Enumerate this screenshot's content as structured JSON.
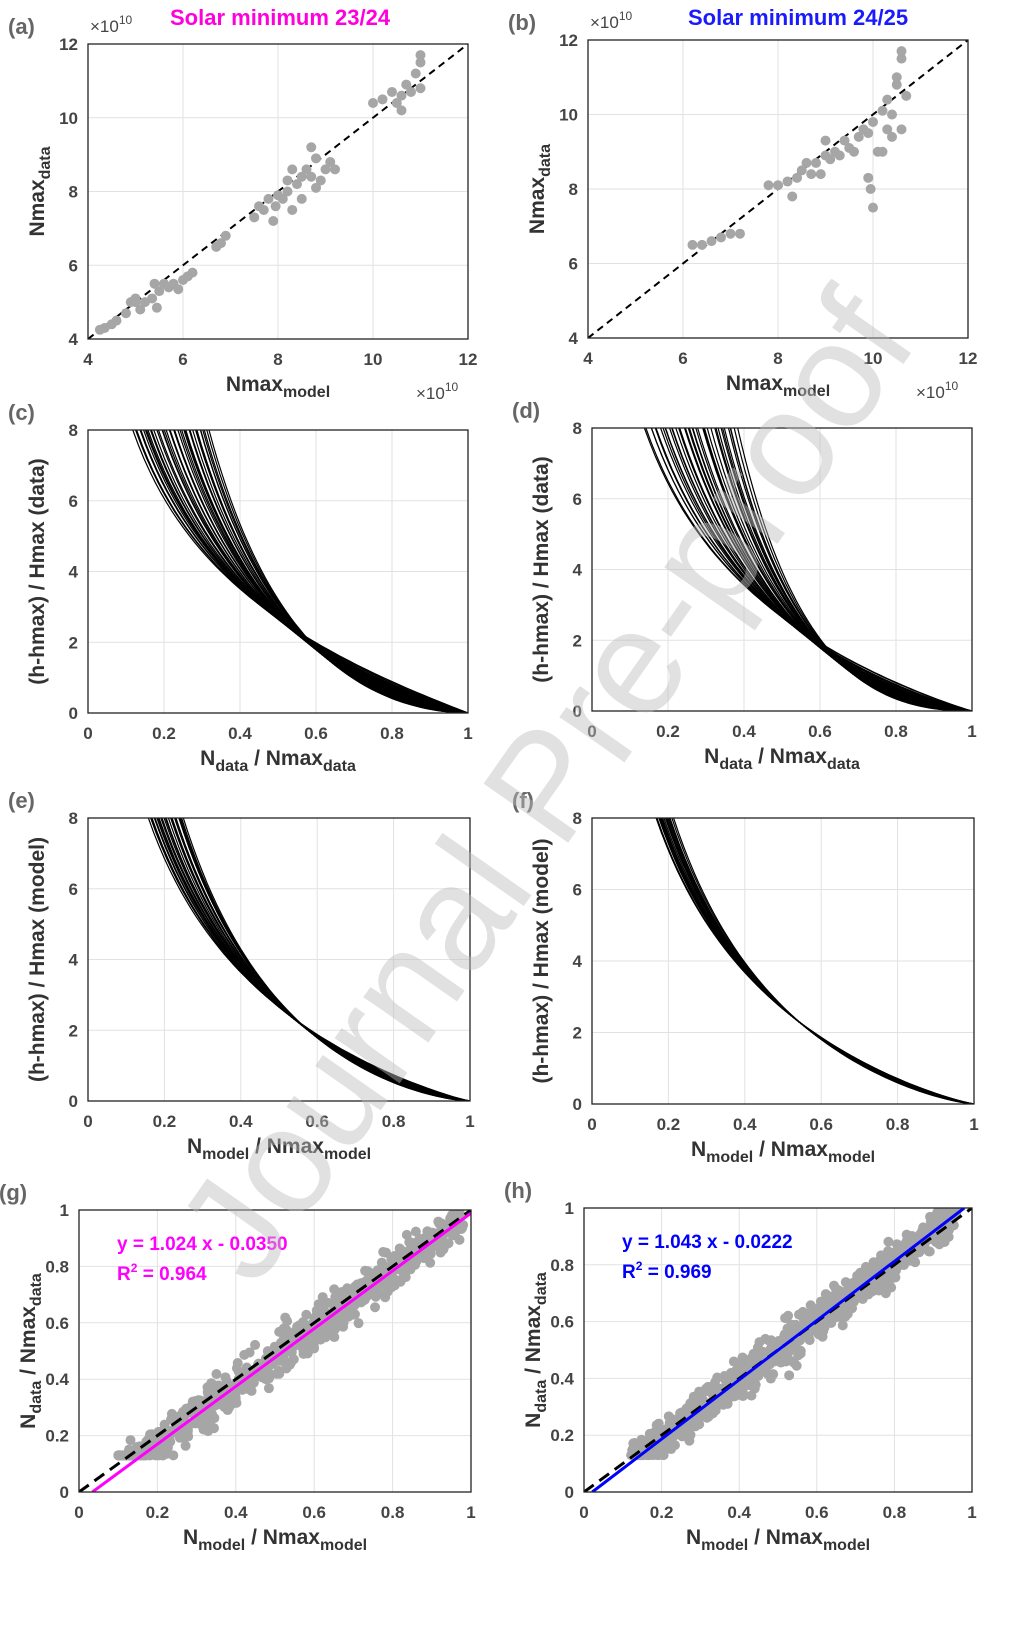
{
  "titles": {
    "left": "Solar minimum 23/24",
    "right": "Solar minimum 24/25",
    "left_color": "#ff00dd",
    "right_color": "#1a1aff"
  },
  "watermark": "Journal Pre-proof",
  "colors": {
    "points": "#a6a6a6",
    "curves": "#000000",
    "dashed": "#000000",
    "fit_left": "#ff00ff",
    "fit_right": "#0000ff"
  },
  "chart_data": [
    {
      "id": "a",
      "panel_label": "(a)",
      "type": "scatter",
      "xlim": [
        4,
        12
      ],
      "ylim": [
        4,
        12
      ],
      "xticks": [
        "4",
        "6",
        "8",
        "10",
        "12"
      ],
      "yticks": [
        "4",
        "6",
        "8",
        "10",
        "12"
      ],
      "x_exponent": "×10",
      "y_exponent": "×10",
      "exponent_power": "10",
      "xlabel": {
        "base": "Nmax",
        "sub": "model"
      },
      "ylabel": {
        "base": "Nmax",
        "sub": "data"
      },
      "reference_line": "y = x (dashed)",
      "points": [
        [
          4.25,
          4.25
        ],
        [
          4.35,
          4.3
        ],
        [
          4.5,
          4.4
        ],
        [
          4.6,
          4.5
        ],
        [
          4.8,
          4.7
        ],
        [
          4.9,
          5.0
        ],
        [
          5.0,
          5.1
        ],
        [
          5.1,
          4.8
        ],
        [
          5.2,
          5.0
        ],
        [
          5.35,
          5.1
        ],
        [
          5.45,
          4.85
        ],
        [
          5.5,
          5.3
        ],
        [
          5.6,
          5.5
        ],
        [
          5.7,
          5.4
        ],
        [
          5.8,
          5.5
        ],
        [
          5.9,
          5.35
        ],
        [
          6.0,
          5.6
        ],
        [
          6.1,
          5.7
        ],
        [
          6.2,
          5.8
        ],
        [
          5.4,
          5.5
        ],
        [
          5.0,
          5.0
        ],
        [
          6.7,
          6.5
        ],
        [
          6.8,
          6.6
        ],
        [
          6.9,
          6.8
        ],
        [
          7.6,
          7.6
        ],
        [
          7.7,
          7.5
        ],
        [
          7.8,
          7.8
        ],
        [
          7.9,
          7.2
        ],
        [
          7.95,
          7.6
        ],
        [
          8.0,
          7.9
        ],
        [
          8.1,
          7.8
        ],
        [
          8.2,
          8.0
        ],
        [
          8.3,
          7.5
        ],
        [
          8.4,
          8.2
        ],
        [
          8.5,
          7.8
        ],
        [
          8.6,
          8.6
        ],
        [
          8.7,
          8.4
        ],
        [
          8.8,
          8.9
        ],
        [
          8.9,
          8.3
        ],
        [
          9.0,
          8.6
        ],
        [
          9.1,
          8.8
        ],
        [
          8.5,
          8.4
        ],
        [
          8.2,
          8.3
        ],
        [
          8.7,
          9.2
        ],
        [
          9.2,
          8.6
        ],
        [
          8.3,
          8.6
        ],
        [
          8.8,
          8.1
        ],
        [
          7.5,
          7.3
        ],
        [
          10.0,
          10.4
        ],
        [
          10.2,
          10.5
        ],
        [
          10.4,
          10.7
        ],
        [
          10.5,
          10.4
        ],
        [
          10.6,
          10.6
        ],
        [
          10.7,
          10.9
        ],
        [
          10.8,
          10.7
        ],
        [
          10.9,
          11.2
        ],
        [
          11.0,
          10.8
        ],
        [
          11.0,
          11.5
        ],
        [
          11.0,
          11.7
        ],
        [
          10.6,
          10.2
        ]
      ]
    },
    {
      "id": "b",
      "panel_label": "(b)",
      "type": "scatter",
      "xlim": [
        4,
        12
      ],
      "ylim": [
        4,
        12
      ],
      "xticks": [
        "4",
        "6",
        "8",
        "10",
        "12"
      ],
      "yticks": [
        "4",
        "6",
        "8",
        "10",
        "12"
      ],
      "x_exponent": "×10",
      "y_exponent": "×10",
      "exponent_power": "10",
      "xlabel": {
        "base": "Nmax",
        "sub": "model"
      },
      "ylabel": {
        "base": "Nmax",
        "sub": "data"
      },
      "reference_line": "y = x (dashed)",
      "points": [
        [
          6.2,
          6.5
        ],
        [
          6.4,
          6.5
        ],
        [
          6.6,
          6.6
        ],
        [
          6.8,
          6.7
        ],
        [
          7.0,
          6.8
        ],
        [
          7.2,
          6.8
        ],
        [
          7.8,
          8.1
        ],
        [
          8.0,
          8.1
        ],
        [
          8.2,
          8.2
        ],
        [
          8.3,
          7.8
        ],
        [
          8.4,
          8.3
        ],
        [
          8.5,
          8.5
        ],
        [
          8.7,
          8.4
        ],
        [
          8.8,
          8.7
        ],
        [
          8.9,
          8.4
        ],
        [
          9.0,
          8.9
        ],
        [
          9.1,
          8.8
        ],
        [
          9.2,
          9.0
        ],
        [
          9.3,
          8.9
        ],
        [
          9.4,
          9.3
        ],
        [
          9.5,
          9.1
        ],
        [
          9.6,
          9.0
        ],
        [
          9.7,
          9.4
        ],
        [
          9.8,
          9.6
        ],
        [
          9.9,
          9.5
        ],
        [
          10.0,
          9.8
        ],
        [
          8.6,
          8.7
        ],
        [
          9.0,
          9.3
        ],
        [
          9.9,
          8.3
        ],
        [
          9.95,
          8.0
        ],
        [
          10.0,
          7.5
        ],
        [
          10.1,
          9.0
        ],
        [
          10.2,
          10.1
        ],
        [
          10.3,
          10.4
        ],
        [
          10.4,
          10.0
        ],
        [
          10.5,
          10.8
        ],
        [
          10.5,
          11.0
        ],
        [
          10.6,
          11.5
        ],
        [
          10.6,
          11.7
        ],
        [
          10.7,
          10.5
        ],
        [
          10.3,
          9.6
        ],
        [
          10.6,
          9.6
        ],
        [
          10.4,
          9.4
        ],
        [
          10.2,
          9.0
        ]
      ]
    },
    {
      "id": "c",
      "panel_label": "(c)",
      "type": "line",
      "xlim": [
        0,
        1
      ],
      "ylim": [
        0,
        8
      ],
      "xticks": [
        "0",
        "0.2",
        "0.4",
        "0.6",
        "0.8",
        "1"
      ],
      "yticks": [
        "0",
        "2",
        "4",
        "6",
        "8"
      ],
      "xlabel": {
        "base": "N",
        "sub": "data",
        "mid": " / Nmax",
        "sub2": "data"
      },
      "ylabel_text": "(h-hmax) / Hmax   (data)",
      "curve_family": {
        "count": 40,
        "x_at_top_min": 0.12,
        "x_at_top_max": 0.32,
        "converges_at": [
          1,
          0
        ]
      }
    },
    {
      "id": "d",
      "panel_label": "(d)",
      "type": "line",
      "xlim": [
        0,
        1
      ],
      "ylim": [
        0,
        8
      ],
      "xticks": [
        "0",
        "0.2",
        "0.4",
        "0.6",
        "0.8",
        "1"
      ],
      "yticks": [
        "0",
        "2",
        "4",
        "6",
        "8"
      ],
      "xlabel": {
        "base": "N",
        "sub": "data",
        "mid": " / Nmax",
        "sub2": "data"
      },
      "ylabel_text": "(h-hmax) / Hmax   (data)",
      "curve_family": {
        "count": 40,
        "x_at_top_min": 0.14,
        "x_at_top_max": 0.38,
        "converges_at": [
          1,
          0
        ]
      }
    },
    {
      "id": "e",
      "panel_label": "(e)",
      "type": "line",
      "xlim": [
        0,
        1
      ],
      "ylim": [
        0,
        8
      ],
      "xticks": [
        "0",
        "0.2",
        "0.4",
        "0.6",
        "0.8",
        "1"
      ],
      "yticks": [
        "0",
        "2",
        "4",
        "6",
        "8"
      ],
      "xlabel": {
        "base": "N",
        "sub": "model",
        "mid": " / Nmax",
        "sub2": "model"
      },
      "ylabel_text": "(h-hmax) / Hmax   (model)",
      "curve_family": {
        "count": 30,
        "x_at_top_min": 0.16,
        "x_at_top_max": 0.25,
        "converges_at": [
          1,
          0
        ]
      }
    },
    {
      "id": "f",
      "panel_label": "(f)",
      "type": "line",
      "xlim": [
        0,
        1
      ],
      "ylim": [
        0,
        8
      ],
      "xticks": [
        "0",
        "0.2",
        "0.4",
        "0.6",
        "0.8",
        "1"
      ],
      "yticks": [
        "0",
        "2",
        "4",
        "6",
        "8"
      ],
      "xlabel": {
        "base": "N",
        "sub": "model",
        "mid": " / Nmax",
        "sub2": "model"
      },
      "ylabel_text": "(h-hmax) / Hmax   (model)",
      "curve_family": {
        "count": 25,
        "x_at_top_min": 0.17,
        "x_at_top_max": 0.21,
        "converges_at": [
          1,
          0
        ]
      }
    },
    {
      "id": "g",
      "panel_label": "(g)",
      "type": "scatter",
      "xlim": [
        0,
        1
      ],
      "ylim": [
        0,
        1
      ],
      "xticks": [
        "0",
        "0.2",
        "0.4",
        "0.6",
        "0.8",
        "1"
      ],
      "yticks": [
        "0",
        "0.2",
        "0.4",
        "0.6",
        "0.8",
        "1"
      ],
      "xlabel": {
        "base": "N",
        "sub": "model",
        "mid": " / Nmax",
        "sub2": "model"
      },
      "ylabel": {
        "base": "N",
        "sub": "data",
        "mid": " / Nmax",
        "sub2": "data"
      },
      "fit": {
        "slope": 1.024,
        "intercept": -0.035,
        "r2": 0.964
      },
      "equation": "y = 1.024 x - 0.0350",
      "r2_label": "R",
      "r2_value": " = 0.964",
      "cloud": {
        "x_range": [
          0.1,
          0.98
        ],
        "scatter_width": 0.07,
        "count": 700
      }
    },
    {
      "id": "h",
      "panel_label": "(h)",
      "type": "scatter",
      "xlim": [
        0,
        1
      ],
      "ylim": [
        0,
        1
      ],
      "xticks": [
        "0",
        "0.2",
        "0.4",
        "0.6",
        "0.8",
        "1"
      ],
      "yticks": [
        "0",
        "0.2",
        "0.4",
        "0.6",
        "0.8",
        "1"
      ],
      "xlabel": {
        "base": "N",
        "sub": "model",
        "mid": " / Nmax",
        "sub2": "model"
      },
      "ylabel": {
        "base": "N",
        "sub": "data",
        "mid": " / Nmax",
        "sub2": "data"
      },
      "fit": {
        "slope": 1.043,
        "intercept": -0.0222,
        "r2": 0.969
      },
      "equation": "y = 1.043 x - 0.0222",
      "r2_label": "R",
      "r2_value": " = 0.969",
      "cloud": {
        "x_range": [
          0.12,
          0.96
        ],
        "scatter_width": 0.06,
        "count": 900
      }
    }
  ]
}
